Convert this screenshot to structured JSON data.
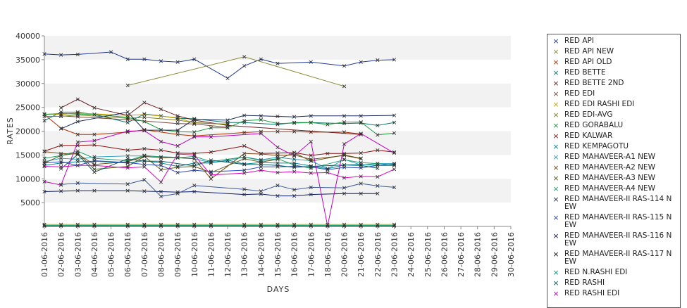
{
  "chart_data": {
    "type": "line",
    "title": "",
    "xlabel": "DAYS",
    "ylabel": "RATES",
    "ylim": [
      0,
      40000
    ],
    "yticks": [
      5000,
      10000,
      15000,
      20000,
      25000,
      30000,
      35000,
      40000
    ],
    "grid": "alternating horizontal bands",
    "legend_position": "right",
    "categories": [
      "01-06-2016",
      "02-06-2016",
      "03-06-2016",
      "04-06-2016",
      "05-06-2016",
      "06-06-2016",
      "07-06-2016",
      "08-06-2016",
      "09-06-2016",
      "10-06-2016",
      "11-06-2016",
      "12-06-2016",
      "13-06-2016",
      "14-06-2016",
      "15-06-2016",
      "16-06-2016",
      "17-06-2016",
      "18-06-2016",
      "20-06-2016",
      "21-06-2016",
      "22-06-2016",
      "23-06-2016",
      "24-06-2016",
      "25-06-2016",
      "26-06-2016",
      "27-06-2016",
      "28-06-2016",
      "29-06-2016",
      "30-06-2016"
    ],
    "series": [
      {
        "name": "RED API",
        "color": "#1f3a93",
        "values": [
          36200,
          36000,
          36100,
          null,
          36600,
          35100,
          35100,
          34700,
          34500,
          35100,
          null,
          31100,
          33700,
          35100,
          34200,
          null,
          34500,
          null,
          33700,
          34500,
          34900,
          35000,
          null,
          null,
          null,
          null,
          null,
          null,
          null
        ]
      },
      {
        "name": "RED API NEW",
        "color": "#8a8a3a",
        "values": [
          null,
          null,
          null,
          null,
          null,
          29600,
          null,
          null,
          null,
          null,
          null,
          null,
          35600,
          null,
          null,
          null,
          null,
          null,
          29400,
          null,
          null,
          null,
          null,
          null,
          null,
          null,
          null,
          null,
          null
        ]
      },
      {
        "name": "RED API OLD",
        "color": "#b03000",
        "values": [
          23500,
          20600,
          19300,
          19300,
          null,
          19800,
          20300,
          null,
          19300,
          19000,
          null,
          null,
          19700,
          19900,
          19900,
          19900,
          19800,
          null,
          19800,
          19400,
          null,
          null,
          null,
          null,
          null,
          null,
          null,
          null,
          null
        ]
      },
      {
        "name": "RED BETTE",
        "color": "#0a7a6a",
        "values": [
          22200,
          24000,
          24000,
          23500,
          null,
          21800,
          23600,
          23200,
          22700,
          22600,
          null,
          21800,
          21800,
          null,
          21400,
          21800,
          21800,
          null,
          21600,
          21700,
          21200,
          21800,
          null,
          null,
          null,
          null,
          null,
          null,
          null
        ]
      },
      {
        "name": "RED BETTE 2ND",
        "color": "#6b1f1f",
        "values": [
          null,
          24900,
          26700,
          24900,
          null,
          23300,
          26000,
          24600,
          23200,
          22300,
          null,
          21200,
          null,
          null,
          null,
          null,
          null,
          null,
          null,
          19300,
          null,
          null,
          null,
          null,
          null,
          null,
          null,
          null,
          null
        ]
      },
      {
        "name": "RED EDI",
        "color": "#7a4a3a",
        "values": [
          null,
          23200,
          23000,
          null,
          null,
          22400,
          null,
          null,
          21600,
          21500,
          null,
          20800,
          null,
          null,
          null,
          null,
          null,
          null,
          null,
          null,
          null,
          null,
          null,
          null,
          null,
          null,
          null,
          null,
          null
        ]
      },
      {
        "name": "RED EDI RASHI EDI",
        "color": "#c9a000",
        "values": [
          23600,
          23500,
          23800,
          null,
          null,
          23300,
          23500,
          null,
          22800,
          21700,
          null,
          21500,
          null,
          null,
          null,
          null,
          null,
          null,
          null,
          null,
          null,
          null,
          null,
          null,
          null,
          null,
          null,
          null,
          null
        ]
      },
      {
        "name": "RED EDI-AVG",
        "color": "#7f7f20",
        "values": [
          23100,
          23100,
          23400,
          null,
          null,
          22700,
          22900,
          null,
          22300,
          21800,
          null,
          21400,
          null,
          null,
          null,
          null,
          null,
          null,
          null,
          null,
          null,
          null,
          null,
          null,
          null,
          null,
          null,
          null,
          null
        ]
      },
      {
        "name": "RED GORABALU",
        "color": "#1a9a3a",
        "values": [
          23500,
          23700,
          23600,
          23500,
          null,
          22900,
          22000,
          20300,
          19900,
          19800,
          20700,
          20700,
          22200,
          22400,
          21600,
          21700,
          21800,
          21400,
          21900,
          21900,
          19200,
          19600,
          null,
          null,
          null,
          null,
          null,
          null,
          null
        ]
      },
      {
        "name": "RED KALWAR",
        "color": "#8a1010",
        "values": [
          15800,
          17000,
          17000,
          17100,
          null,
          16000,
          16300,
          16000,
          15400,
          15300,
          15600,
          null,
          16900,
          15300,
          15400,
          15500,
          14900,
          15300,
          15300,
          15400,
          16000,
          15600,
          null,
          null,
          null,
          null,
          null,
          null,
          null
        ]
      },
      {
        "name": "RED KEMPAGOTU",
        "color": "#008a9a",
        "values": [
          12800,
          13300,
          13600,
          13700,
          null,
          13300,
          13800,
          13300,
          12600,
          13300,
          13300,
          13900,
          13100,
          13400,
          13300,
          13300,
          12700,
          12100,
          12900,
          13000,
          12800,
          13100,
          null,
          null,
          null,
          null,
          null,
          null,
          null
        ]
      },
      {
        "name": "RED MAHAVEER-A1 NEW",
        "color": "#2aa0c0",
        "values": [
          13600,
          14300,
          14100,
          14600,
          null,
          14800,
          14800,
          null,
          14500,
          14200,
          13400,
          13800,
          14600,
          14000,
          14500,
          14100,
          13800,
          12100,
          14100,
          12900,
          13200,
          13200,
          null,
          null,
          null,
          null,
          null,
          null,
          null
        ]
      },
      {
        "name": "RED MAHAVEER-A2 NEW",
        "color": "#7a4a1a",
        "values": [
          15700,
          15300,
          15200,
          13000,
          null,
          13600,
          14700,
          14400,
          14400,
          14200,
          10000,
          null,
          15300,
          15200,
          14900,
          15000,
          14100,
          null,
          14900,
          14200,
          null,
          null,
          null,
          null,
          null,
          null,
          null,
          null,
          null
        ]
      },
      {
        "name": "RED MAHAVEER-A3 NEW",
        "color": "#5a5a1a",
        "values": [
          13300,
          14900,
          15400,
          12000,
          null,
          12600,
          14700,
          11900,
          12400,
          12600,
          11300,
          null,
          14200,
          13500,
          14100,
          15500,
          13700,
          null,
          15000,
          14300,
          null,
          null,
          null,
          null,
          null,
          null,
          null,
          null,
          null
        ]
      },
      {
        "name": "RED MAHAVEER-A4 NEW",
        "color": "#1aa06a",
        "values": [
          14300,
          14900,
          15800,
          14300,
          null,
          13800,
          14900,
          14600,
          14400,
          14700,
          13600,
          null,
          14600,
          13800,
          14200,
          12900,
          12200,
          null,
          14000,
          13400,
          13200,
          12900,
          null,
          null,
          null,
          null,
          null,
          null,
          null
        ]
      },
      {
        "name": "RED MAHAVEER-II RAS-114 NEW",
        "color": "#1a2a5a",
        "values": [
          null,
          20500,
          22000,
          null,
          null,
          24000,
          20200,
          null,
          20200,
          22500,
          null,
          22300,
          23300,
          23200,
          23100,
          23000,
          23200,
          null,
          23200,
          23200,
          null,
          23300,
          null,
          null,
          null,
          null,
          null,
          null,
          null
        ]
      },
      {
        "name": "RED MAHAVEER-II RAS-115 NEW",
        "color": "#2a4ac0",
        "values": [
          13300,
          13600,
          12800,
          13800,
          null,
          13400,
          13000,
          12800,
          11300,
          11800,
          11500,
          null,
          11800,
          12500,
          12500,
          12600,
          12500,
          11900,
          12400,
          12300,
          12800,
          12800,
          null,
          null,
          null,
          null,
          null,
          null,
          null
        ]
      },
      {
        "name": "RED MAHAVEER-II RAS-116 NEW",
        "color": "#0a1a6a",
        "values": [
          7300,
          7400,
          7500,
          7500,
          null,
          7500,
          7400,
          7300,
          7200,
          7300,
          null,
          null,
          6700,
          6800,
          6400,
          6400,
          6700,
          null,
          6900,
          6900,
          6900,
          null,
          null,
          null,
          null,
          null,
          null,
          null,
          null
        ]
      },
      {
        "name": "RED MAHAVEER-II RAS-117 NEW",
        "color": "#111111",
        "values": [
          100,
          100,
          100,
          100,
          null,
          100,
          100,
          100,
          100,
          100,
          100,
          null,
          100,
          100,
          100,
          100,
          100,
          100,
          100,
          100,
          100,
          100,
          null,
          null,
          null,
          null,
          null,
          null,
          null
        ]
      },
      {
        "name": "RED N.RASHI EDI",
        "color": "#0aa070",
        "values": [
          200,
          200,
          200,
          200,
          null,
          200,
          200,
          200,
          200,
          200,
          200,
          null,
          200,
          200,
          200,
          200,
          200,
          200,
          200,
          200,
          200,
          200,
          null,
          null,
          null,
          null,
          null,
          null,
          null
        ]
      },
      {
        "name": "RED RASHI",
        "color": "#0a5a5a",
        "values": [
          null,
          12100,
          15100,
          11400,
          null,
          14200,
          13700,
          13700,
          null,
          12700,
          13900,
          null,
          13000,
          13000,
          12800,
          12400,
          12600,
          null,
          12900,
          12800,
          12200,
          null,
          null,
          null,
          null,
          null,
          null,
          null,
          null
        ]
      },
      {
        "name": "RED RASHI EDI",
        "color": "#c000c0",
        "values": [
          9400,
          8700,
          17700,
          18000,
          null,
          20000,
          20100,
          17800,
          16900,
          18800,
          18800,
          null,
          null,
          19500,
          16600,
          14800,
          17800,
          100,
          17300,
          19500,
          null,
          15400,
          null,
          null,
          null,
          null,
          null,
          null,
          null
        ]
      },
      {
        "name": "",
        "color": "#e000c0",
        "values": [
          12600,
          12500,
          12800,
          12800,
          null,
          12300,
          12500,
          9300,
          15200,
          15000,
          10800,
          null,
          11200,
          11800,
          11300,
          11500,
          11200,
          11300,
          10200,
          10500,
          10400,
          12000,
          null,
          null,
          null,
          null,
          null,
          null,
          null
        ]
      },
      {
        "name": "",
        "color": "#3a5a9a",
        "values": [
          null,
          8800,
          9100,
          null,
          null,
          8900,
          9800,
          6300,
          6900,
          8600,
          null,
          null,
          7800,
          7400,
          8600,
          7700,
          8200,
          null,
          8100,
          9000,
          8500,
          8200,
          null,
          null,
          null,
          null,
          null,
          null,
          null
        ]
      },
      {
        "name": "",
        "color": "#b0b000",
        "values": [
          400,
          400,
          400,
          400,
          null,
          400,
          400,
          400,
          400,
          400,
          400,
          null,
          400,
          400,
          400,
          400,
          400,
          400,
          400,
          400,
          400,
          400,
          null,
          null,
          null,
          null,
          null,
          null,
          null
        ]
      }
    ]
  }
}
